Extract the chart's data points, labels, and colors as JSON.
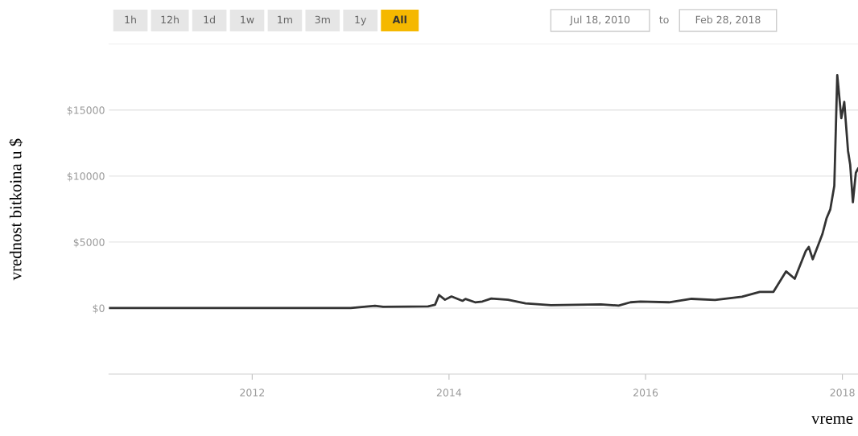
{
  "chart_data": {
    "type": "line",
    "xlabel": "vreme",
    "ylabel": "vrednost bitkoina u $",
    "x": [
      "2010-07-18",
      "2011-06-10",
      "2012-01-01",
      "2013-01-01",
      "2013-04-01",
      "2013-05-01",
      "2013-10-15",
      "2013-11-10",
      "2013-11-25",
      "2013-12-17",
      "2014-01-10",
      "2014-02-20",
      "2014-03-03",
      "2014-04-08",
      "2014-05-05",
      "2014-06-07",
      "2014-08-08",
      "2014-10-12",
      "2015-01-15",
      "2015-07-19",
      "2015-09-23",
      "2015-11-06",
      "2015-12-13",
      "2016-03-28",
      "2016-06-20",
      "2016-09-15",
      "2016-12-24",
      "2017-02-28",
      "2017-04-20",
      "2017-06-06",
      "2017-07-08",
      "2017-08-18",
      "2017-08-29",
      "2017-09-13",
      "2017-10-19",
      "2017-11-03",
      "2017-11-17",
      "2017-12-02",
      "2017-12-13",
      "2017-12-28",
      "2018-01-08",
      "2018-01-22",
      "2018-01-30",
      "2018-02-09",
      "2018-02-20",
      "2018-02-28"
    ],
    "series": [
      {
        "color": "#333333",
        "values": [
          0,
          0,
          0,
          0,
          170,
          100,
          130,
          250,
          990,
          630,
          880,
          550,
          690,
          440,
          500,
          720,
          630,
          360,
          220,
          280,
          190,
          440,
          500,
          440,
          700,
          620,
          860,
          1230,
          1230,
          2780,
          2220,
          4320,
          4630,
          3700,
          5620,
          6790,
          7470,
          9260,
          17650,
          14380,
          15620,
          11900,
          10860,
          8020,
          10250,
          10560
        ]
      }
    ],
    "xlim": [
      "2010-07-18",
      "2018-02-28"
    ],
    "ylim": [
      -5000,
      20000
    ],
    "xticks": [
      {
        "value": "2012-01-01",
        "label": "2012"
      },
      {
        "value": "2014-01-01",
        "label": "2014"
      },
      {
        "value": "2016-01-01",
        "label": "2016"
      },
      {
        "value": "2018-01-01",
        "label": "2018"
      }
    ],
    "yticks": [
      {
        "value": 0,
        "label": "$0"
      },
      {
        "value": 5000,
        "label": "$5000"
      },
      {
        "value": 10000,
        "label": "$10000"
      },
      {
        "value": 15000,
        "label": "$15000"
      }
    ],
    "grid": "y",
    "marker": "none",
    "line_style": "solid",
    "annotations": [
      "1h",
      "12h",
      "1d",
      "1w",
      "1m",
      "3m",
      "1y",
      "All",
      "Jul 18, 2010",
      "to",
      "Feb 28, 2018"
    ]
  }
}
